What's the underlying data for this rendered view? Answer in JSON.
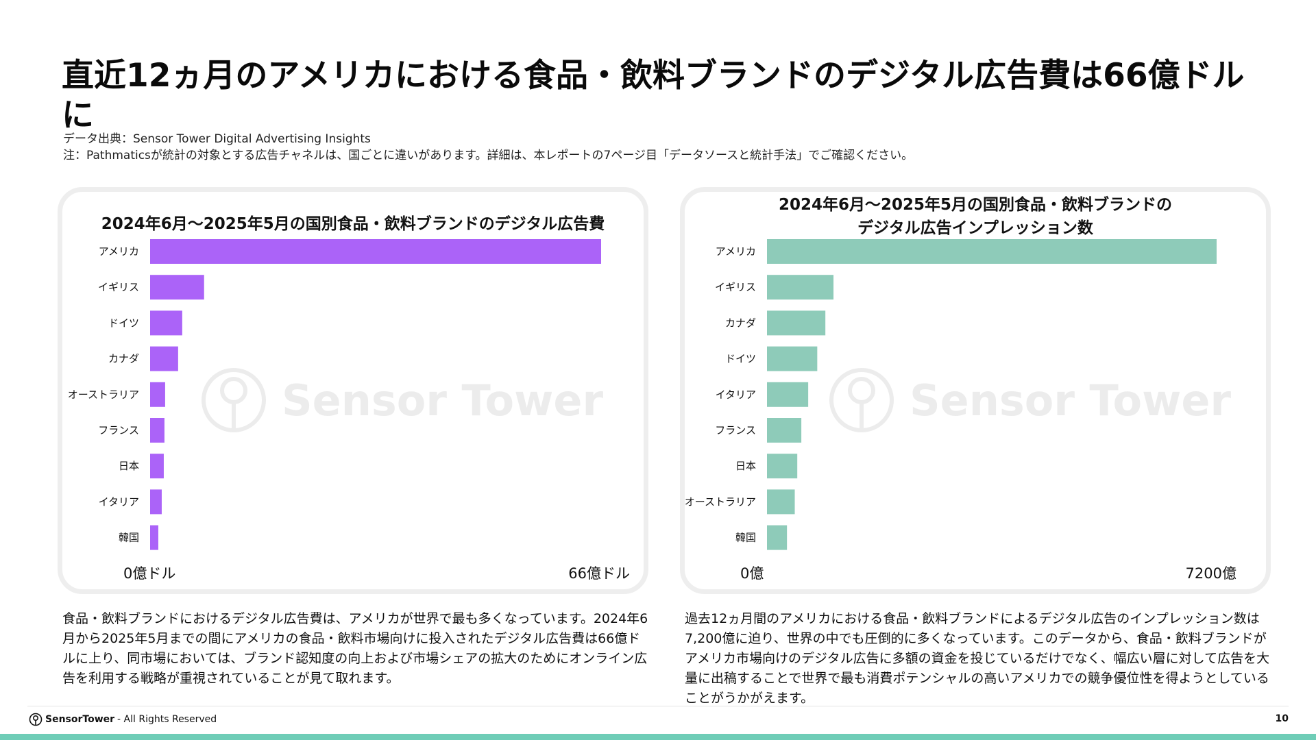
{
  "title": "直近12ヵ月のアメリカにおける食品・飲料ブランドのデジタル広告費は66億ドルに",
  "source": "データ出典：Sensor Tower Digital Advertising Insights",
  "note": "注：Pathmaticsが統計の対象とする広告チャネルは、国ごとに違いがあります。詳細は、本レポートの7ページ目「データソースと統計手法」でご確認ください。",
  "watermark": "Sensor Tower",
  "chart_data": [
    {
      "type": "bar",
      "orientation": "horizontal",
      "title": "2024年6月〜2025年5月の国別食品・飲料ブランドのデジタル広告費",
      "categories": [
        "アメリカ",
        "イギリス",
        "ドイツ",
        "カナダ",
        "オーストラリア",
        "フランス",
        "日本",
        "イタリア",
        "韓国"
      ],
      "values": [
        66,
        7.9,
        4.7,
        4.1,
        2.2,
        2.1,
        2.0,
        1.7,
        1.2
      ],
      "unit": "億ドル",
      "xlim": [
        0,
        66
      ],
      "axis_min_label": "0億ドル",
      "axis_max_label": "66億ドル",
      "color": "#ab63f8",
      "grid": false
    },
    {
      "type": "bar",
      "orientation": "horizontal",
      "title": "2024年6月〜2025年5月の国別食品・飲料ブランドの\nデジタル広告インプレッション数",
      "categories": [
        "アメリカ",
        "イギリス",
        "カナダ",
        "ドイツ",
        "イタリア",
        "フランス",
        "日本",
        "オーストラリア",
        "韓国"
      ],
      "values": [
        7200,
        1065,
        935,
        805,
        660,
        550,
        485,
        445,
        320
      ],
      "unit": "億",
      "xlim": [
        0,
        7200
      ],
      "axis_min_label": "0億",
      "axis_max_label": "7200億",
      "color": "#8ecbb9",
      "grid": false
    }
  ],
  "body_left": "食品・飲料ブランドにおけるデジタル広告費は、アメリカが世界で最も多くなっています。2024年6月から2025年5月までの間にアメリカの食品・飲料市場向けに投入されたデジタル広告費は66億ドルに上り、同市場においては、ブランド認知度の向上および市場シェアの拡大のためにオンライン広告を利用する戦略が重視されていることが見て取れます。",
  "body_right": "過去12ヵ月間のアメリカにおける食品・飲料ブランドによるデジタル広告のインプレッション数は7,200億に迫り、世界の中でも圧倒的に多くなっています。このデータから、食品・飲料ブランドがアメリカ市場向けのデジタル広告に多額の資金を投じているだけでなく、幅広い層に対して広告を大量に出稿することで世界で最も消費ポテンシャルの高いアメリカでの競争優位性を得ようとしていることがうかがえます。",
  "footer": {
    "brand": "SensorTower",
    "rights": "- All Rights Reserved",
    "page_number": "10"
  }
}
